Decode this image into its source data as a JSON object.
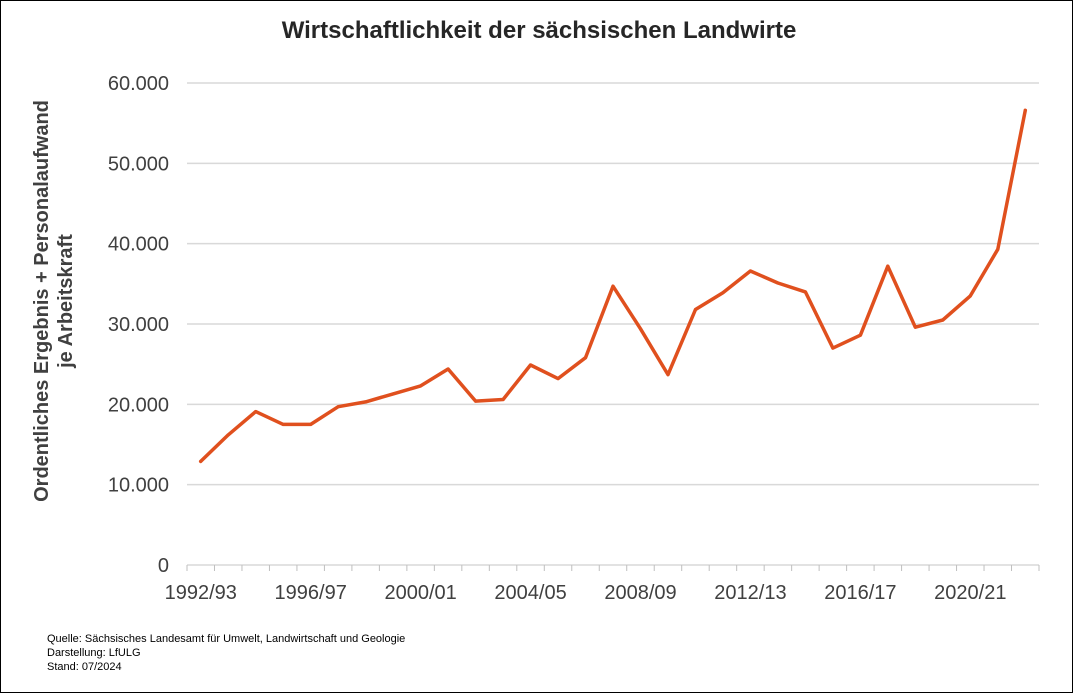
{
  "chart_data": {
    "type": "line",
    "title": "Wirtschaftlichkeit der sächsischen Landwirte",
    "ylabel_lines": [
      "Ordentliches Ergebnis + Personalaufwand",
      "je Arbeitskraft"
    ],
    "xlabel": "",
    "ylim": [
      0,
      60000
    ],
    "y_ticks": [
      0,
      10000,
      20000,
      30000,
      40000,
      50000,
      60000
    ],
    "y_tick_labels": [
      "0",
      "10.000",
      "20.000",
      "30.000",
      "40.000",
      "50.000",
      "60.000"
    ],
    "x_tick_labels": [
      "1992/93",
      "1996/97",
      "2000/01",
      "2004/05",
      "2008/09",
      "2012/13",
      "2016/17",
      "2020/21"
    ],
    "x_tick_label_every": 4,
    "grid": true,
    "series": [
      {
        "color": "#e0501e",
        "x": [
          "1992/93",
          "1993/94",
          "1994/95",
          "1995/96",
          "1996/97",
          "1997/98",
          "1998/99",
          "1999/00",
          "2000/01",
          "2001/02",
          "2002/03",
          "2003/04",
          "2004/05",
          "2005/06",
          "2006/07",
          "2007/08",
          "2008/09",
          "2009/10",
          "2010/11",
          "2011/12",
          "2012/13",
          "2013/14",
          "2014/15",
          "2015/16",
          "2016/17",
          "2017/18",
          "2018/19",
          "2019/20",
          "2020/21",
          "2021/22",
          "2022/23"
        ],
        "values": [
          12900,
          16200,
          19100,
          17500,
          17500,
          19700,
          20300,
          21300,
          22300,
          24400,
          20400,
          20600,
          24900,
          23200,
          25800,
          34700,
          29400,
          23700,
          31800,
          33900,
          36600,
          35100,
          34000,
          27000,
          28600,
          37200,
          29600,
          30500,
          33500,
          39300,
          56600
        ]
      }
    ]
  },
  "source_notes": {
    "quelle": "Quelle: Sächsisches Landesamt für Umwelt, Landwirtschaft und Geologie",
    "darstellung": "Darstellung: LfULG",
    "stand": "Stand: 07/2024"
  }
}
